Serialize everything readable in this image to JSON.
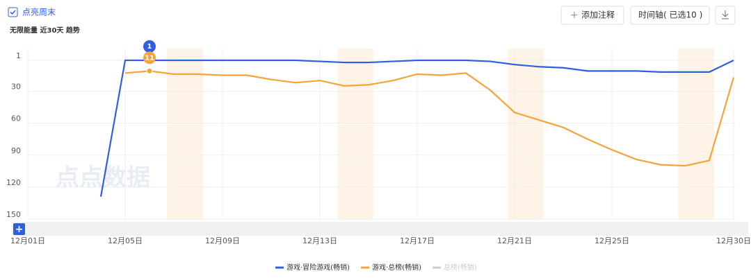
{
  "ui": {
    "weekend_toggle": "点亮周末",
    "subtitle": "无限能量 近30天 趋势",
    "add_note": "添加注释",
    "timeline": "时间轴( 已选10 )",
    "watermark": "点点数据"
  },
  "chart_data": {
    "type": "line",
    "inverted": true,
    "categories": [
      "12月01日",
      null,
      null,
      null,
      "12月05日",
      null,
      null,
      null,
      "12月09日",
      null,
      null,
      null,
      "12月13日",
      null,
      null,
      null,
      "12月17日",
      null,
      null,
      null,
      "12月21日",
      null,
      null,
      null,
      "12月25日",
      null,
      null,
      null,
      null,
      "12月30日"
    ],
    "ylim": [
      1,
      150
    ],
    "yticks": [
      1,
      30,
      60,
      90,
      120,
      150
    ],
    "grid": true,
    "series": [
      {
        "name": "游戏·冒险游戏(畅销)",
        "color": "#2f5fe0",
        "values": [
          null,
          null,
          null,
          129,
          1,
          1,
          1,
          1,
          1,
          1,
          1,
          1,
          2,
          3,
          3,
          2,
          1,
          1,
          1,
          2,
          5,
          7,
          8,
          11,
          11,
          11,
          12,
          12,
          12,
          1
        ]
      },
      {
        "name": "游戏·总榜(畅销)",
        "color": "#f5a43a",
        "values": [
          null,
          null,
          null,
          null,
          13,
          11,
          14,
          14,
          15,
          15,
          19,
          22,
          20,
          25,
          24,
          20,
          14,
          15,
          13,
          29,
          50,
          57,
          64,
          75,
          85,
          94,
          99,
          100,
          95,
          17
        ]
      },
      {
        "name": "总榜(畅销)",
        "color": "#cccccc",
        "hidden": true,
        "values": [
          null,
          null,
          null,
          null,
          null,
          null,
          null,
          null,
          null,
          null,
          null,
          null,
          null,
          null,
          null,
          null,
          null,
          null,
          null,
          null,
          null,
          null,
          null,
          null,
          null,
          null,
          null,
          null,
          null,
          null
        ]
      }
    ],
    "annotations": [
      {
        "text": "1",
        "series": 0,
        "index": 5
      },
      {
        "text": "11",
        "series": 1,
        "index": 5
      }
    ]
  }
}
